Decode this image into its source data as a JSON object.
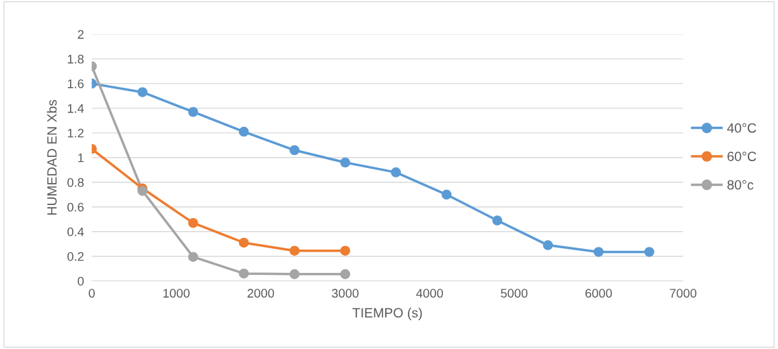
{
  "chart_data": {
    "type": "line",
    "xlabel": "TIEMPO (s)",
    "ylabel": "HUMEDAD EN Xbs",
    "xlim": [
      0,
      7000
    ],
    "xticks": [
      0,
      1000,
      2000,
      3000,
      4000,
      5000,
      6000,
      7000
    ],
    "ylim": [
      0,
      2
    ],
    "yticks": [
      0,
      0.2,
      0.4,
      0.6,
      0.8,
      1,
      1.2,
      1.4,
      1.6,
      1.8,
      2
    ],
    "grid": "y",
    "legend": "right",
    "marker": "circle",
    "line_style": "solid",
    "series": [
      {
        "name": "40°C",
        "color": "#5b9bd5",
        "x": [
          0,
          600,
          1200,
          1800,
          2400,
          3000,
          3600,
          4200,
          4800,
          5400,
          6000,
          6600
        ],
        "values": [
          1.6,
          1.53,
          1.37,
          1.21,
          1.06,
          0.96,
          0.88,
          0.7,
          0.49,
          0.29,
          0.235,
          0.235
        ]
      },
      {
        "name": "60°C",
        "color": "#ed7d31",
        "x": [
          0,
          600,
          1200,
          1800,
          2400,
          3000
        ],
        "values": [
          1.07,
          0.75,
          0.47,
          0.31,
          0.245,
          0.245
        ]
      },
      {
        "name": "80°c",
        "color": "#a5a5a5",
        "x": [
          0,
          600,
          1200,
          1800,
          2400,
          3000
        ],
        "values": [
          1.74,
          0.73,
          0.195,
          0.06,
          0.055,
          0.055
        ]
      }
    ]
  }
}
